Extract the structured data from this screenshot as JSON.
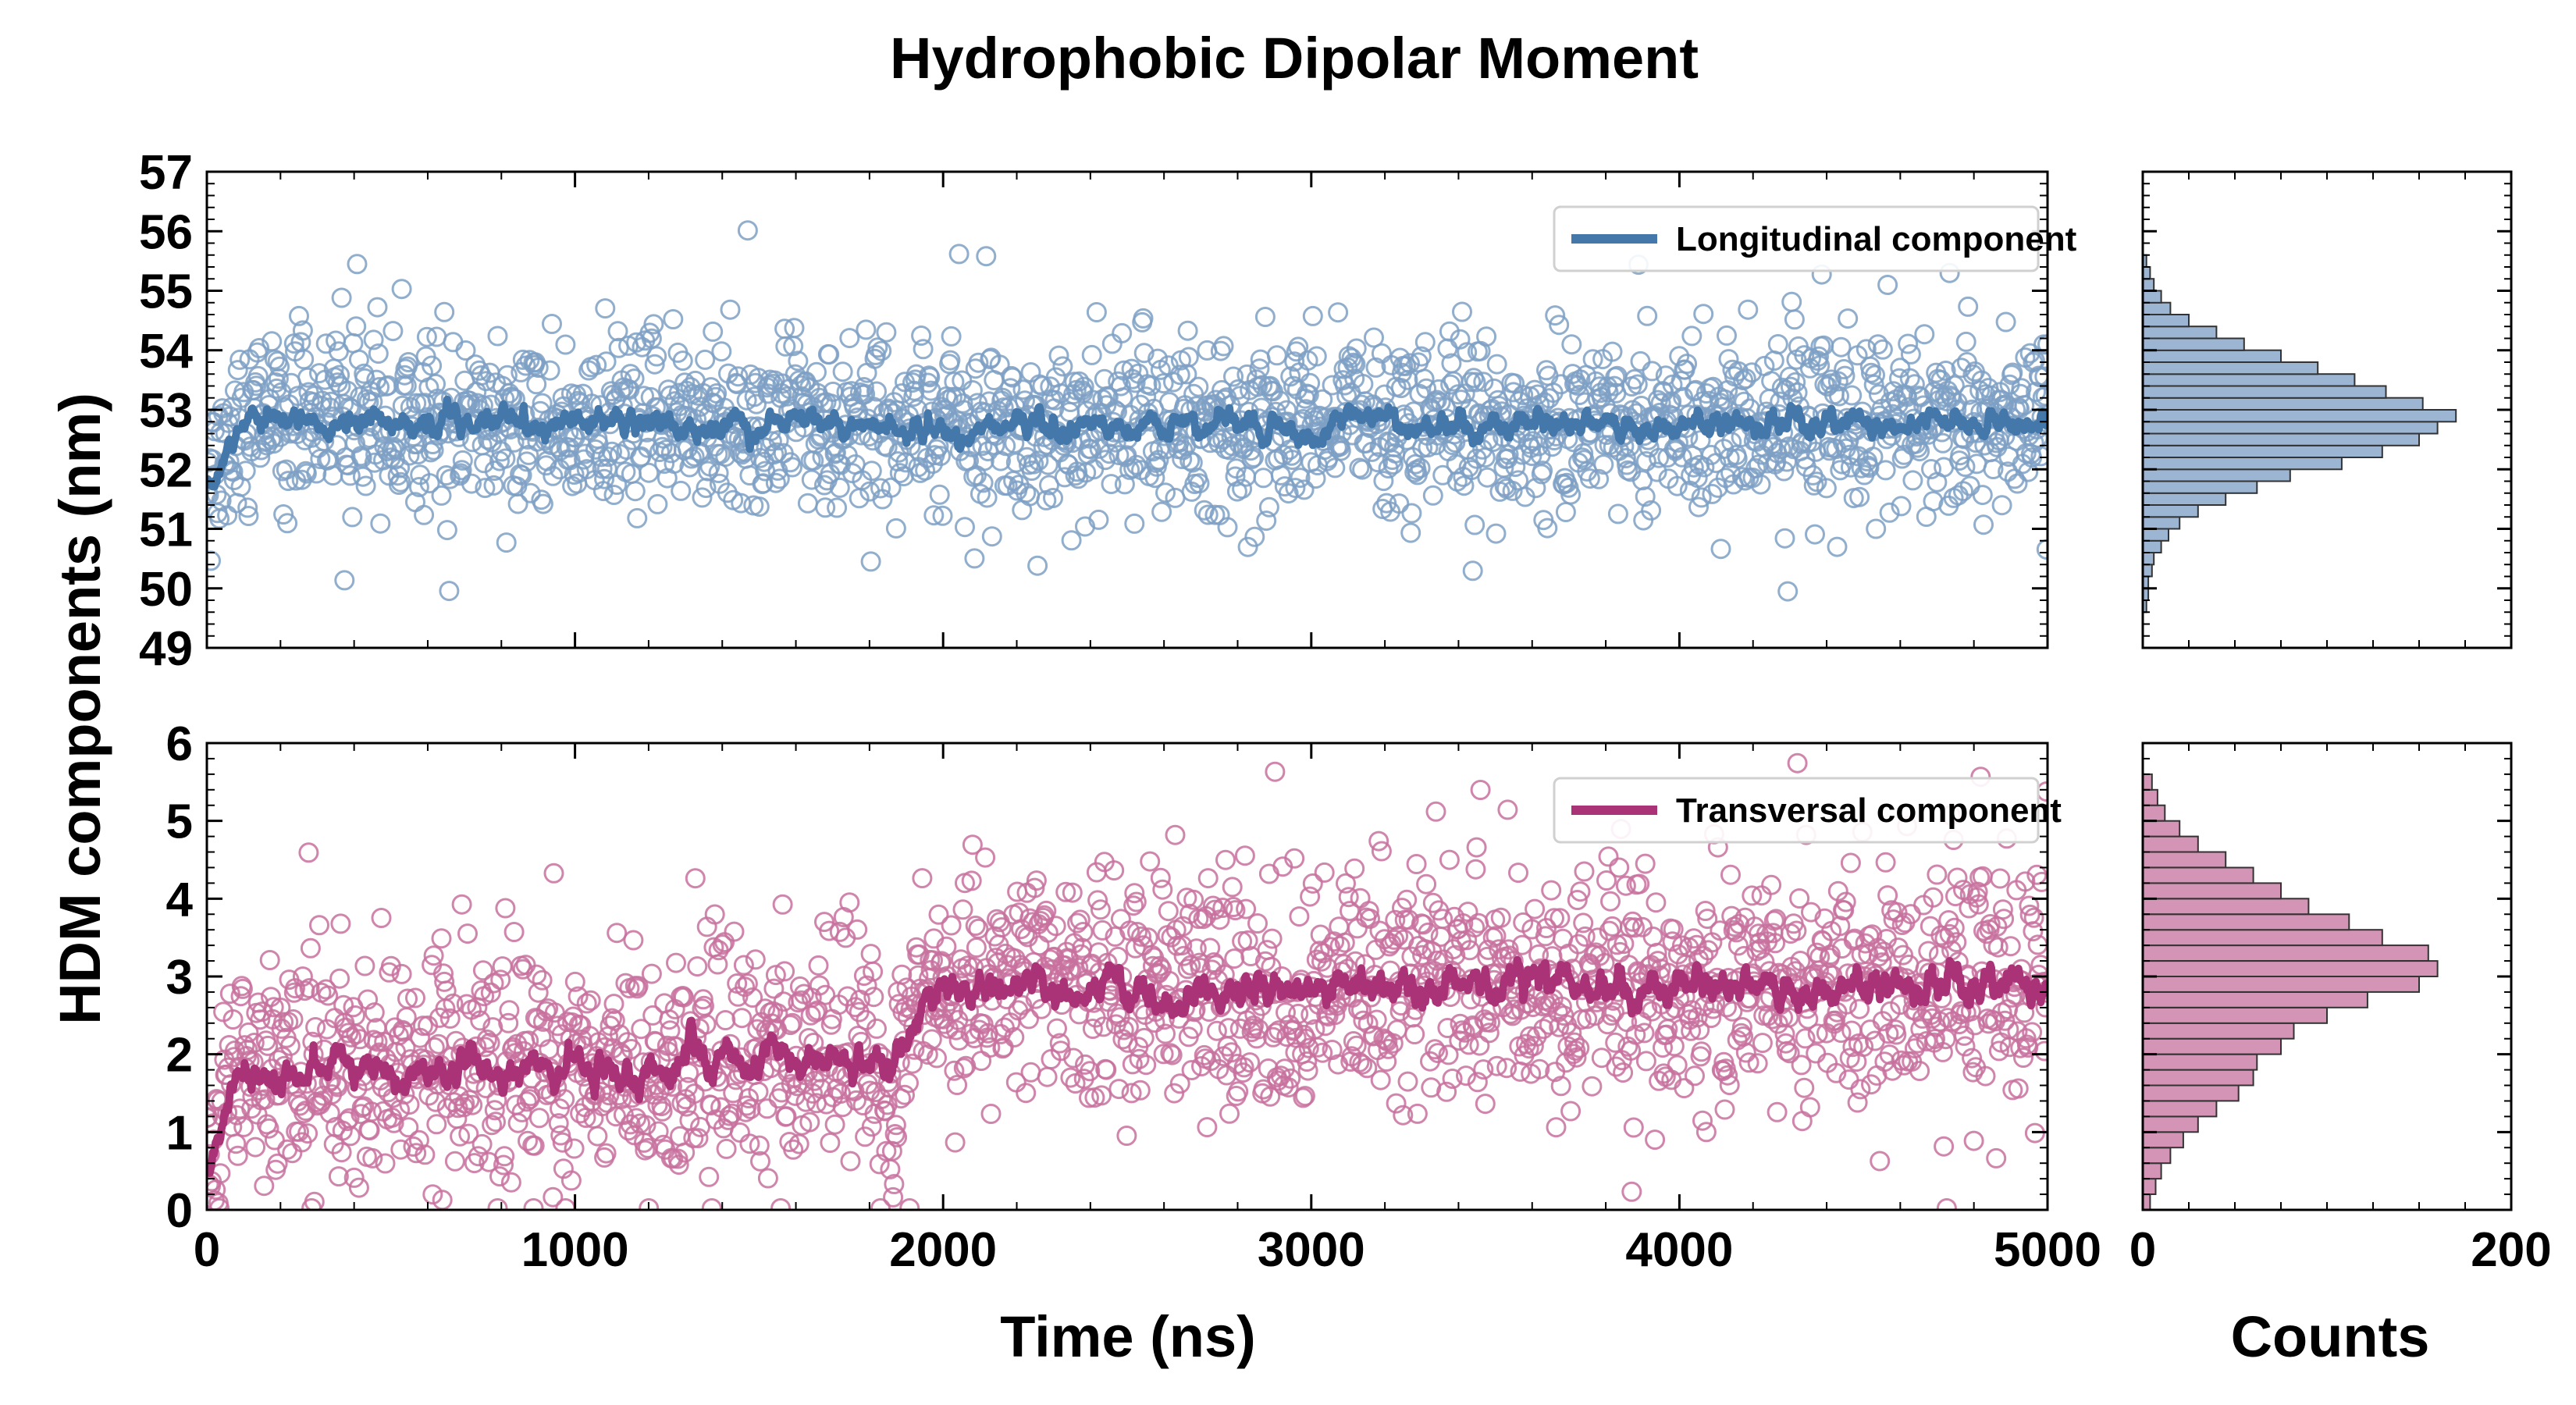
{
  "chart_data": {
    "type": "scatter",
    "title": "Hydrophobic Dipolar Moment",
    "ylabel": "HDM components (nm)",
    "xlabel": "Time (ns)",
    "hist_xlabel": "Counts",
    "x_range": [
      0,
      5000
    ],
    "x_ticks": [
      "0",
      "1000",
      "2000",
      "3000",
      "4000",
      "5000"
    ],
    "hist_x_ticks": [
      "0",
      "200"
    ],
    "hist_x_range": [
      0,
      200
    ],
    "panels": [
      {
        "name": "longitudinal",
        "legend": "Longitudinal component",
        "color": "#4477aa",
        "marker_color": "#7ea0c4",
        "hist_fill": "#9bb5d3",
        "ylim": [
          49,
          57
        ],
        "y_ticks": [
          "49",
          "50",
          "51",
          "52",
          "53",
          "54",
          "55",
          "56",
          "57"
        ],
        "mean_start": 52.0,
        "mean_end": 52.8,
        "spread": 0.7,
        "running_average_profile": [
          [
            0,
            51.8
          ],
          [
            100,
            52.8
          ],
          [
            2000,
            52.7
          ],
          [
            5000,
            52.8
          ]
        ],
        "histogram": {
          "bin_start": 49.6,
          "bin_width": 0.2,
          "counts": [
            2,
            3,
            3,
            5,
            6,
            10,
            14,
            20,
            30,
            45,
            62,
            80,
            108,
            130,
            150,
            160,
            170,
            152,
            132,
            115,
            95,
            75,
            55,
            40,
            25,
            15,
            10,
            6,
            4,
            2
          ]
        }
      },
      {
        "name": "transversal",
        "legend": "Transversal component",
        "color": "#aa3377",
        "marker_color": "#c8719e",
        "hist_fill": "#d494b5",
        "ylim": [
          0,
          6
        ],
        "y_ticks": [
          "0",
          "1",
          "2",
          "3",
          "4",
          "5",
          "6"
        ],
        "mean_start": 1.8,
        "mean_end": 2.8,
        "spread": 0.75,
        "running_average_profile": [
          [
            0,
            0.5
          ],
          [
            80,
            1.8
          ],
          [
            1860,
            1.9
          ],
          [
            1950,
            2.6
          ],
          [
            2100,
            2.8
          ],
          [
            5000,
            2.9
          ]
        ],
        "histogram": {
          "bin_start": 0.0,
          "bin_width": 0.2,
          "counts": [
            4,
            7,
            10,
            15,
            22,
            30,
            40,
            52,
            60,
            62,
            75,
            82,
            100,
            122,
            150,
            160,
            155,
            130,
            112,
            90,
            75,
            60,
            45,
            30,
            20,
            12,
            8,
            5
          ]
        }
      }
    ]
  }
}
